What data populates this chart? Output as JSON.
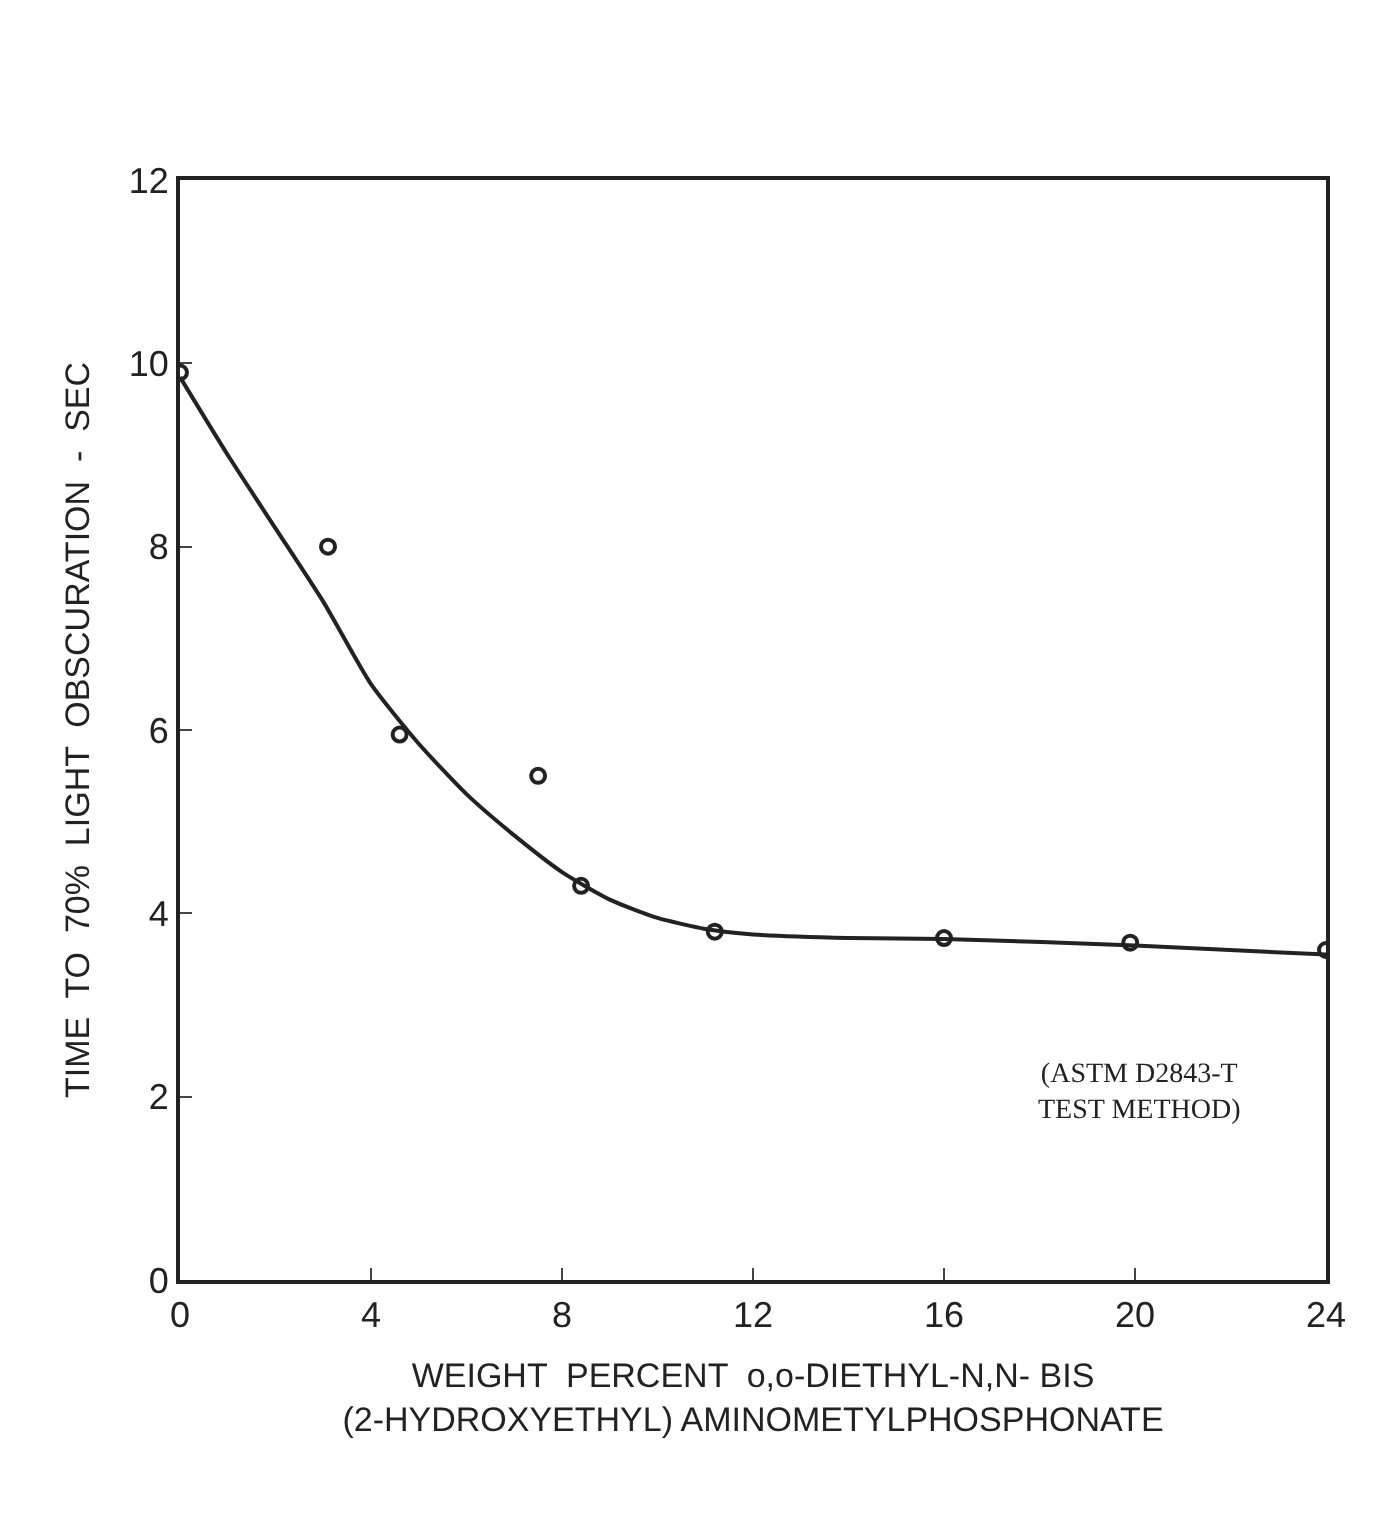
{
  "chart_data": {
    "type": "scatter",
    "xlabel": "WEIGHT  PERCENT  o,o-DIETHYL-N,N- BIS\n(2-HYDROXYETHYL) AMINOMETYLPHOSPHONATE",
    "ylabel": "TIME  TO  70%  LIGHT  OBSCURATION  -  SEC",
    "series": [
      {
        "color": "#222222",
        "marker": "circle",
        "x": [
          0,
          3.1,
          4.6,
          7.5,
          8.4,
          11.2,
          16,
          19.9,
          24
        ],
        "values": [
          9.9,
          8.0,
          5.95,
          5.5,
          4.3,
          3.8,
          3.73,
          3.68,
          3.6
        ]
      },
      {
        "type": "line",
        "color": "#222222",
        "marker": "none",
        "x": [
          0,
          1,
          2,
          3,
          4,
          5,
          6,
          7,
          8,
          9,
          10,
          11,
          12,
          14,
          16,
          20,
          24
        ],
        "values": [
          9.85,
          9.0,
          8.2,
          7.4,
          6.5,
          5.85,
          5.3,
          4.85,
          4.45,
          4.15,
          3.95,
          3.83,
          3.77,
          3.73,
          3.72,
          3.65,
          3.55
        ]
      }
    ],
    "annotations": [
      "(ASTM D2843-T\nTEST METHOD)"
    ],
    "xlim": [
      0,
      24
    ],
    "ylim": [
      0,
      12
    ],
    "xticks": [
      0,
      4,
      8,
      12,
      16,
      20,
      24
    ],
    "yticks": [
      0,
      2,
      4,
      6,
      8,
      10,
      12
    ]
  }
}
